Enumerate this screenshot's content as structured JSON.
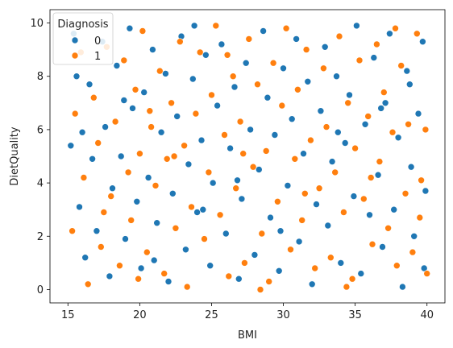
{
  "chart_data": {
    "type": "scatter",
    "xlabel": "BMI",
    "ylabel": "DietQuality",
    "xlim": [
      13.75,
      41.25
    ],
    "ylim": [
      -0.5,
      10.5
    ],
    "xticks": [
      15,
      20,
      25,
      30,
      35,
      40
    ],
    "yticks": [
      0,
      2,
      4,
      6,
      8,
      10
    ],
    "grid": false,
    "legend": {
      "title": "Diagnosis",
      "placement": "upper-left",
      "entries": [
        "0",
        "1"
      ]
    },
    "series": [
      {
        "name": "0",
        "color": "#1f77b4",
        "points": [
          [
            15.4,
            9.6
          ],
          [
            15.6,
            8.0
          ],
          [
            15.2,
            5.4
          ],
          [
            15.8,
            3.1
          ],
          [
            16.2,
            1.2
          ],
          [
            16.5,
            7.7
          ],
          [
            16.7,
            4.9
          ],
          [
            17.0,
            2.2
          ],
          [
            17.4,
            9.3
          ],
          [
            17.6,
            6.1
          ],
          [
            17.9,
            0.5
          ],
          [
            18.1,
            3.8
          ],
          [
            18.4,
            8.4
          ],
          [
            18.7,
            5.0
          ],
          [
            19.0,
            1.9
          ],
          [
            19.3,
            9.8
          ],
          [
            19.5,
            6.8
          ],
          [
            19.8,
            3.3
          ],
          [
            20.1,
            0.8
          ],
          [
            20.3,
            7.4
          ],
          [
            20.6,
            4.2
          ],
          [
            20.9,
            9.0
          ],
          [
            21.2,
            2.5
          ],
          [
            21.5,
            5.9
          ],
          [
            21.8,
            8.1
          ],
          [
            22.0,
            0.3
          ],
          [
            22.3,
            3.6
          ],
          [
            22.6,
            6.5
          ],
          [
            22.9,
            9.5
          ],
          [
            23.2,
            1.5
          ],
          [
            23.4,
            4.7
          ],
          [
            23.7,
            7.9
          ],
          [
            24.0,
            2.9
          ],
          [
            24.3,
            5.6
          ],
          [
            24.6,
            8.8
          ],
          [
            24.9,
            0.9
          ],
          [
            25.1,
            4.0
          ],
          [
            25.4,
            6.9
          ],
          [
            25.7,
            9.2
          ],
          [
            26.0,
            2.1
          ],
          [
            26.3,
            5.3
          ],
          [
            26.6,
            7.6
          ],
          [
            26.9,
            0.4
          ],
          [
            27.1,
            3.4
          ],
          [
            27.4,
            8.5
          ],
          [
            27.7,
            6.0
          ],
          [
            28.0,
            1.3
          ],
          [
            28.3,
            4.5
          ],
          [
            28.6,
            9.7
          ],
          [
            28.9,
            7.2
          ],
          [
            29.1,
            2.7
          ],
          [
            29.4,
            5.8
          ],
          [
            29.7,
            0.7
          ],
          [
            30.0,
            8.3
          ],
          [
            30.3,
            3.9
          ],
          [
            30.6,
            6.4
          ],
          [
            30.9,
            9.4
          ],
          [
            31.1,
            1.8
          ],
          [
            31.4,
            5.1
          ],
          [
            31.7,
            7.8
          ],
          [
            32.0,
            0.2
          ],
          [
            32.3,
            3.2
          ],
          [
            32.6,
            6.7
          ],
          [
            32.9,
            9.1
          ],
          [
            33.1,
            2.4
          ],
          [
            33.4,
            4.8
          ],
          [
            33.7,
            8.0
          ],
          [
            34.0,
            1.0
          ],
          [
            34.3,
            5.5
          ],
          [
            34.6,
            7.3
          ],
          [
            34.9,
            3.5
          ],
          [
            35.1,
            9.9
          ],
          [
            35.4,
            0.6
          ],
          [
            35.7,
            6.2
          ],
          [
            36.0,
            2.8
          ],
          [
            36.3,
            8.7
          ],
          [
            36.6,
            4.3
          ],
          [
            36.9,
            1.6
          ],
          [
            37.1,
            7.0
          ],
          [
            37.4,
            9.6
          ],
          [
            37.7,
            3.0
          ],
          [
            38.0,
            5.7
          ],
          [
            38.3,
            0.1
          ],
          [
            38.6,
            8.2
          ],
          [
            38.9,
            4.6
          ],
          [
            39.1,
            2.0
          ],
          [
            39.4,
            6.6
          ],
          [
            39.7,
            9.3
          ],
          [
            39.9,
            3.7
          ],
          [
            39.8,
            0.8
          ],
          [
            16.0,
            5.9
          ],
          [
            18.9,
            7.1
          ],
          [
            21.0,
            1.1
          ],
          [
            23.8,
            9.9
          ],
          [
            26.8,
            4.1
          ],
          [
            29.8,
            2.2
          ],
          [
            33.8,
            5.9
          ],
          [
            36.8,
            6.8
          ],
          [
            38.8,
            7.7
          ],
          [
            24.4,
            3.0
          ]
        ]
      },
      {
        "name": "1",
        "color": "#ff7f0e",
        "points": [
          [
            15.3,
            2.2
          ],
          [
            15.5,
            6.6
          ],
          [
            15.9,
            8.9
          ],
          [
            16.1,
            4.2
          ],
          [
            16.4,
            0.2
          ],
          [
            16.8,
            7.2
          ],
          [
            17.1,
            5.5
          ],
          [
            17.3,
            1.6
          ],
          [
            17.7,
            9.1
          ],
          [
            18.0,
            3.5
          ],
          [
            18.3,
            6.3
          ],
          [
            18.6,
            0.9
          ],
          [
            18.9,
            8.6
          ],
          [
            19.2,
            4.4
          ],
          [
            19.4,
            2.6
          ],
          [
            19.7,
            7.5
          ],
          [
            20.0,
            5.1
          ],
          [
            20.2,
            9.7
          ],
          [
            20.5,
            1.4
          ],
          [
            20.8,
            6.1
          ],
          [
            21.1,
            3.9
          ],
          [
            21.4,
            8.2
          ],
          [
            21.7,
            0.6
          ],
          [
            21.9,
            4.9
          ],
          [
            22.2,
            7.0
          ],
          [
            22.5,
            2.3
          ],
          [
            22.8,
            9.3
          ],
          [
            23.1,
            5.4
          ],
          [
            23.3,
            0.1
          ],
          [
            23.6,
            3.1
          ],
          [
            23.9,
            6.6
          ],
          [
            24.2,
            8.9
          ],
          [
            24.5,
            1.9
          ],
          [
            24.8,
            4.4
          ],
          [
            25.0,
            7.3
          ],
          [
            25.3,
            9.9
          ],
          [
            25.6,
            2.8
          ],
          [
            25.9,
            5.8
          ],
          [
            26.2,
            0.5
          ],
          [
            26.5,
            8.0
          ],
          [
            26.7,
            3.8
          ],
          [
            27.0,
            6.3
          ],
          [
            27.3,
            1.0
          ],
          [
            27.6,
            9.4
          ],
          [
            27.9,
            4.6
          ],
          [
            28.2,
            7.7
          ],
          [
            28.5,
            2.1
          ],
          [
            28.8,
            5.2
          ],
          [
            29.0,
            0.3
          ],
          [
            29.3,
            8.5
          ],
          [
            29.6,
            3.3
          ],
          [
            29.9,
            6.9
          ],
          [
            30.2,
            9.8
          ],
          [
            30.5,
            1.5
          ],
          [
            30.8,
            4.9
          ],
          [
            31.0,
            7.5
          ],
          [
            31.3,
            2.6
          ],
          [
            31.6,
            9.0
          ],
          [
            31.9,
            5.6
          ],
          [
            32.2,
            0.8
          ],
          [
            32.5,
            3.8
          ],
          [
            32.8,
            8.3
          ],
          [
            33.0,
            6.1
          ],
          [
            33.3,
            1.2
          ],
          [
            33.6,
            4.4
          ],
          [
            33.9,
            9.5
          ],
          [
            34.2,
            2.9
          ],
          [
            34.5,
            7.0
          ],
          [
            34.8,
            0.4
          ],
          [
            35.0,
            5.3
          ],
          [
            35.3,
            8.6
          ],
          [
            35.6,
            3.4
          ],
          [
            35.9,
            6.5
          ],
          [
            36.2,
            1.7
          ],
          [
            36.5,
            9.2
          ],
          [
            36.7,
            4.8
          ],
          [
            37.0,
            7.4
          ],
          [
            37.3,
            2.3
          ],
          [
            37.6,
            5.9
          ],
          [
            37.9,
            0.9
          ],
          [
            38.2,
            8.4
          ],
          [
            38.5,
            3.6
          ],
          [
            38.7,
            6.2
          ],
          [
            39.0,
            1.4
          ],
          [
            39.3,
            9.6
          ],
          [
            39.6,
            4.1
          ],
          [
            39.9,
            6.0
          ],
          [
            40.0,
            0.6
          ],
          [
            39.5,
            2.7
          ],
          [
            17.5,
            2.9
          ],
          [
            19.9,
            0.4
          ],
          [
            22.4,
            5.0
          ],
          [
            26.1,
            8.8
          ],
          [
            28.4,
            0.0
          ],
          [
            31.5,
            3.6
          ],
          [
            34.4,
            0.1
          ],
          [
            36.1,
            4.2
          ],
          [
            37.8,
            9.8
          ],
          [
            27.2,
            5.1
          ],
          [
            20.7,
            6.7
          ]
        ]
      }
    ]
  }
}
